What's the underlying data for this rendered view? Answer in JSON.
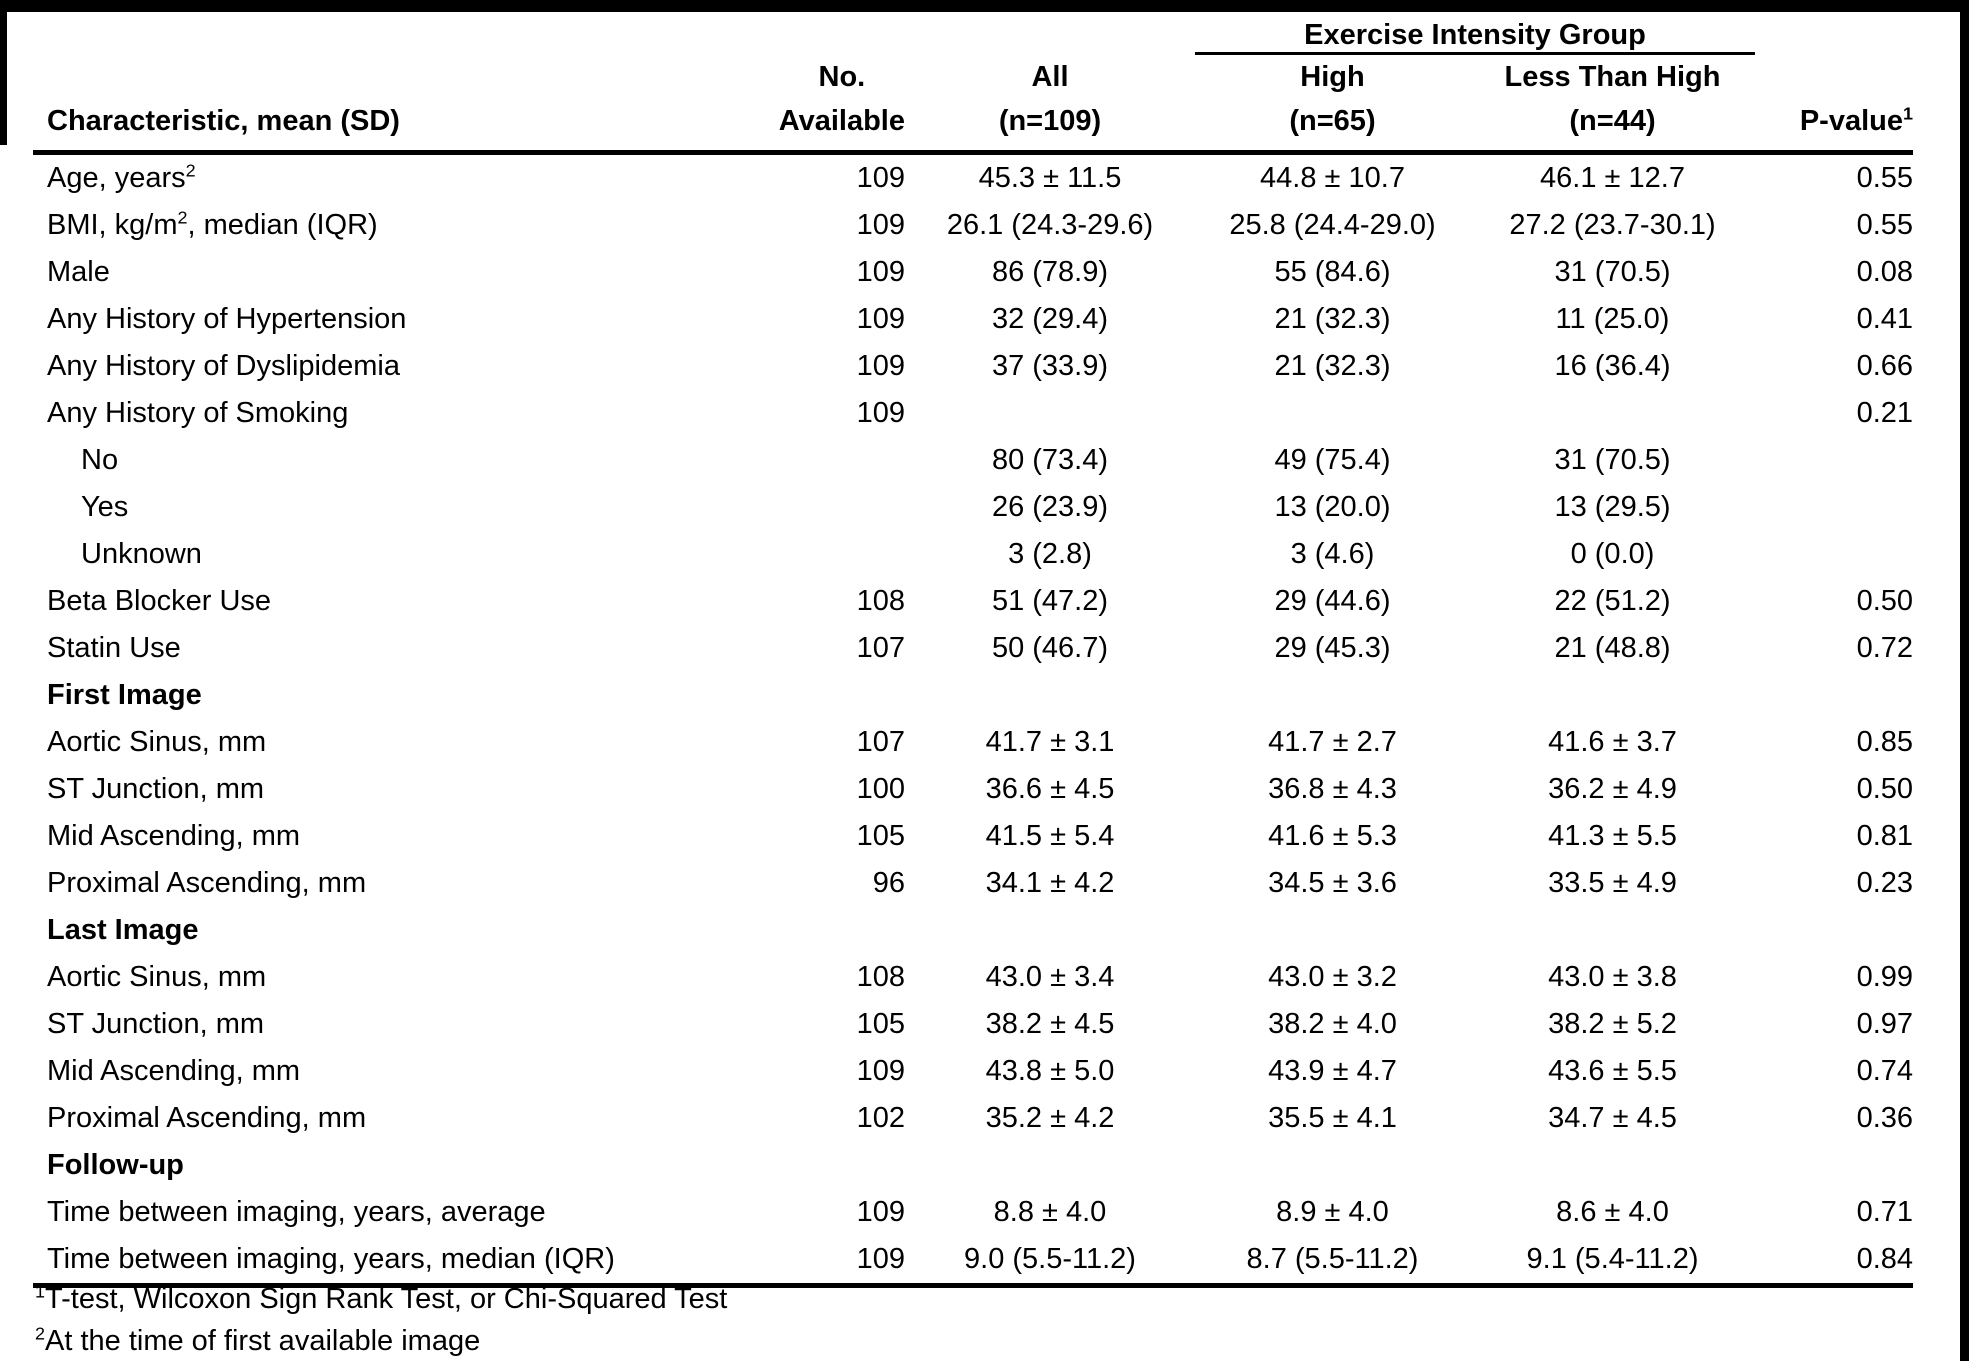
{
  "table": {
    "group_header": "Exercise Intensity Group",
    "columns": {
      "characteristic": "Characteristic, mean (SD)",
      "no_line1": "No.",
      "no_line2": "Available",
      "all_line1": "All",
      "all_line2": "(n=109)",
      "high_line1": "High",
      "high_line2": "(n=65)",
      "lth_line1": "Less Than High",
      "lth_line2": "(n=44)",
      "p_value": "P-value",
      "p_value_sup": "1"
    },
    "rows": [
      {
        "label_parts": [
          {
            "t": "Age, years"
          },
          {
            "sup": "2"
          }
        ],
        "indent": false,
        "bold": false,
        "no_available": "109",
        "all": "45.3 ± 11.5",
        "high": "44.8 ± 10.7",
        "less_than_high": "46.1 ± 12.7",
        "p_value": "0.55"
      },
      {
        "label_parts": [
          {
            "t": "BMI, kg/m"
          },
          {
            "sup": "2"
          },
          {
            "t": ", median (IQR)"
          }
        ],
        "indent": false,
        "bold": false,
        "no_available": "109",
        "all": "26.1 (24.3-29.6)",
        "high": "25.8 (24.4-29.0)",
        "less_than_high": "27.2 (23.7-30.1)",
        "p_value": "0.55"
      },
      {
        "label_parts": [
          {
            "t": "Male"
          }
        ],
        "indent": false,
        "bold": false,
        "no_available": "109",
        "all": "86 (78.9)",
        "high": "55 (84.6)",
        "less_than_high": "31 (70.5)",
        "p_value": "0.08"
      },
      {
        "label_parts": [
          {
            "t": "Any History of Hypertension"
          }
        ],
        "indent": false,
        "bold": false,
        "no_available": "109",
        "all": "32 (29.4)",
        "high": "21 (32.3)",
        "less_than_high": "11 (25.0)",
        "p_value": "0.41"
      },
      {
        "label_parts": [
          {
            "t": "Any History of Dyslipidemia"
          }
        ],
        "indent": false,
        "bold": false,
        "no_available": "109",
        "all": "37 (33.9)",
        "high": "21 (32.3)",
        "less_than_high": "16 (36.4)",
        "p_value": "0.66"
      },
      {
        "label_parts": [
          {
            "t": "Any History of Smoking"
          }
        ],
        "indent": false,
        "bold": false,
        "no_available": "109",
        "all": "",
        "high": "",
        "less_than_high": "",
        "p_value": "0.21"
      },
      {
        "label_parts": [
          {
            "t": "No"
          }
        ],
        "indent": true,
        "bold": false,
        "no_available": "",
        "all": "80 (73.4)",
        "high": "49 (75.4)",
        "less_than_high": "31 (70.5)",
        "p_value": ""
      },
      {
        "label_parts": [
          {
            "t": "Yes"
          }
        ],
        "indent": true,
        "bold": false,
        "no_available": "",
        "all": "26 (23.9)",
        "high": "13 (20.0)",
        "less_than_high": "13 (29.5)",
        "p_value": ""
      },
      {
        "label_parts": [
          {
            "t": "Unknown"
          }
        ],
        "indent": true,
        "bold": false,
        "no_available": "",
        "all": "3 (2.8)",
        "high": "3 (4.6)",
        "less_than_high": "0 (0.0)",
        "p_value": ""
      },
      {
        "label_parts": [
          {
            "t": "Beta Blocker Use"
          }
        ],
        "indent": false,
        "bold": false,
        "no_available": "108",
        "all": "51 (47.2)",
        "high": "29 (44.6)",
        "less_than_high": "22 (51.2)",
        "p_value": "0.50"
      },
      {
        "label_parts": [
          {
            "t": "Statin Use"
          }
        ],
        "indent": false,
        "bold": false,
        "no_available": "107",
        "all": "50 (46.7)",
        "high": "29 (45.3)",
        "less_than_high": "21 (48.8)",
        "p_value": "0.72"
      },
      {
        "label_parts": [
          {
            "t": "First Image"
          }
        ],
        "indent": false,
        "bold": true,
        "no_available": "",
        "all": "",
        "high": "",
        "less_than_high": "",
        "p_value": ""
      },
      {
        "label_parts": [
          {
            "t": "Aortic Sinus, mm"
          }
        ],
        "indent": false,
        "bold": false,
        "no_available": "107",
        "all": "41.7 ± 3.1",
        "high": "41.7 ± 2.7",
        "less_than_high": "41.6 ± 3.7",
        "p_value": "0.85"
      },
      {
        "label_parts": [
          {
            "t": "ST Junction, mm"
          }
        ],
        "indent": false,
        "bold": false,
        "no_available": "100",
        "all": "36.6 ± 4.5",
        "high": "36.8 ± 4.3",
        "less_than_high": "36.2 ± 4.9",
        "p_value": "0.50"
      },
      {
        "label_parts": [
          {
            "t": "Mid Ascending, mm"
          }
        ],
        "indent": false,
        "bold": false,
        "no_available": "105",
        "all": "41.5 ± 5.4",
        "high": "41.6 ± 5.3",
        "less_than_high": "41.3 ± 5.5",
        "p_value": "0.81"
      },
      {
        "label_parts": [
          {
            "t": "Proximal Ascending, mm"
          }
        ],
        "indent": false,
        "bold": false,
        "no_available": "96",
        "all": "34.1 ± 4.2",
        "high": "34.5 ± 3.6",
        "less_than_high": "33.5 ± 4.9",
        "p_value": "0.23"
      },
      {
        "label_parts": [
          {
            "t": "Last Image"
          }
        ],
        "indent": false,
        "bold": true,
        "no_available": "",
        "all": "",
        "high": "",
        "less_than_high": "",
        "p_value": ""
      },
      {
        "label_parts": [
          {
            "t": "Aortic Sinus, mm"
          }
        ],
        "indent": false,
        "bold": false,
        "no_available": "108",
        "all": "43.0 ± 3.4",
        "high": "43.0 ± 3.2",
        "less_than_high": "43.0 ± 3.8",
        "p_value": "0.99"
      },
      {
        "label_parts": [
          {
            "t": "ST Junction, mm"
          }
        ],
        "indent": false,
        "bold": false,
        "no_available": "105",
        "all": "38.2 ± 4.5",
        "high": "38.2 ± 4.0",
        "less_than_high": "38.2 ± 5.2",
        "p_value": "0.97"
      },
      {
        "label_parts": [
          {
            "t": "Mid Ascending, mm"
          }
        ],
        "indent": false,
        "bold": false,
        "no_available": "109",
        "all": "43.8 ± 5.0",
        "high": "43.9 ± 4.7",
        "less_than_high": "43.6 ± 5.5",
        "p_value": "0.74"
      },
      {
        "label_parts": [
          {
            "t": "Proximal Ascending, mm"
          }
        ],
        "indent": false,
        "bold": false,
        "no_available": "102",
        "all": "35.2 ± 4.2",
        "high": "35.5 ± 4.1",
        "less_than_high": "34.7 ± 4.5",
        "p_value": "0.36"
      },
      {
        "label_parts": [
          {
            "t": "Follow-up"
          }
        ],
        "indent": false,
        "bold": true,
        "no_available": "",
        "all": "",
        "high": "",
        "less_than_high": "",
        "p_value": ""
      },
      {
        "label_parts": [
          {
            "t": "Time between imaging, years, average"
          }
        ],
        "indent": false,
        "bold": false,
        "no_available": "109",
        "all": "8.8 ± 4.0",
        "high": "8.9 ± 4.0",
        "less_than_high": "8.6 ± 4.0",
        "p_value": "0.71"
      },
      {
        "label_parts": [
          {
            "t": "Time between imaging, years, median (IQR)"
          }
        ],
        "indent": false,
        "bold": false,
        "no_available": "109",
        "all": "9.0 (5.5-11.2)",
        "high": "8.7 (5.5-11.2)",
        "less_than_high": "9.1 (5.4-11.2)",
        "p_value": "0.84"
      }
    ],
    "footnotes": [
      {
        "sup": "1",
        "text": "T-test, Wilcoxon Sign Rank Test, or Chi-Squared Test"
      },
      {
        "sup": "2",
        "text": "At the time of first available image"
      }
    ]
  }
}
